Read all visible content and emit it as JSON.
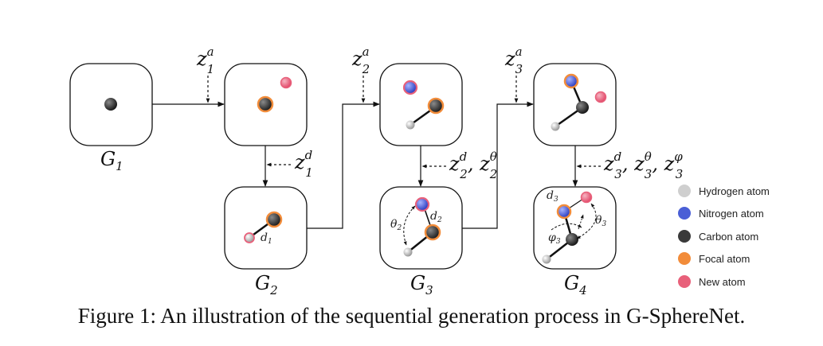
{
  "graph_labels": {
    "g1": "G",
    "g1_sub": "1",
    "g2": "G",
    "g2_sub": "2",
    "g3": "G",
    "g3_sub": "3",
    "g4": "G",
    "g4_sub": "4"
  },
  "latent_labels": {
    "z1a": {
      "base": "z",
      "sub": "1",
      "sup": "a"
    },
    "z2a": {
      "base": "z",
      "sub": "2",
      "sup": "a"
    },
    "z3a": {
      "base": "z",
      "sub": "3",
      "sup": "a"
    },
    "z1d": {
      "base": "z",
      "sub": "1",
      "sup": "d"
    },
    "z2d": {
      "base": "z",
      "sub": "2",
      "sup": "d"
    },
    "z2theta": {
      "base": "z",
      "sub": "2",
      "sup": "θ"
    },
    "z3d": {
      "base": "z",
      "sub": "3",
      "sup": "d"
    },
    "z3theta": {
      "base": "z",
      "sub": "3",
      "sup": "θ"
    },
    "z3phi": {
      "base": "z",
      "sub": "3",
      "sup": "φ"
    }
  },
  "geometry_labels": {
    "d1": {
      "base": "d",
      "sub": "1"
    },
    "d2": {
      "base": "d",
      "sub": "2"
    },
    "theta2": {
      "base": "θ",
      "sub": "2"
    },
    "d3": {
      "base": "d",
      "sub": "3"
    },
    "theta3": {
      "base": "θ",
      "sub": "3"
    },
    "phi3": {
      "base": "φ",
      "sub": "3"
    }
  },
  "legend": [
    {
      "label": "Hydrogen atom",
      "color": "#cfcfcf"
    },
    {
      "label": "Nitrogen atom",
      "color": "#4a5fd6"
    },
    {
      "label": "Carbon atom",
      "color": "#3a3a3a"
    },
    {
      "label": "Focal atom",
      "color": "#f28c3a"
    },
    {
      "label": "New atom",
      "color": "#e8607a"
    }
  ],
  "caption": "Figure 1: An illustration of the sequential generation process in G-SphereNet."
}
